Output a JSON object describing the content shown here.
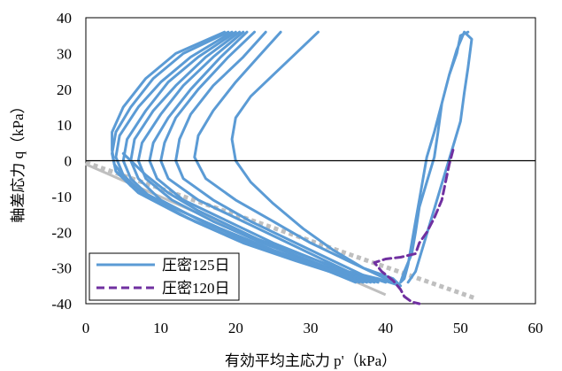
{
  "chart_data": {
    "type": "line",
    "title": "",
    "xlabel": "有効平均主応力 p'（kPa）",
    "ylabel": "軸差応力 q（kPa）",
    "xlim": [
      0,
      60
    ],
    "ylim": [
      -40,
      40
    ],
    "xticks": [
      "0",
      "10",
      "20",
      "30",
      "40",
      "50",
      "60"
    ],
    "yticks": [
      "40",
      "30",
      "20",
      "10",
      "0",
      "-10",
      "-20",
      "-30",
      "-40"
    ],
    "grid": false,
    "legend": "bottom-left",
    "colors": {
      "series_125": "#5b9bd5",
      "series_120": "#7030a0",
      "reference_line_solid": "#bfbfbf",
      "reference_line_dotted": "#bfbfbf",
      "zero_line": "#000000"
    },
    "series": [
      {
        "name": "圧密125日",
        "style": "solid",
        "segments": [
          [
            [
              51.0,
              36.0
            ],
            [
              50.0,
              35.0
            ],
            [
              49.5,
              30.0
            ],
            [
              48.5,
              24.0
            ],
            [
              47.5,
              16.0
            ],
            [
              46.5,
              8.0
            ],
            [
              45.5,
              1.0
            ],
            [
              45.0,
              -5.0
            ],
            [
              44.5,
              -11.0
            ],
            [
              44.0,
              -17.0
            ],
            [
              43.5,
              -23.0
            ],
            [
              43.0,
              -29.0
            ],
            [
              42.5,
              -33.0
            ],
            [
              42.0,
              -34.0
            ],
            [
              42.5,
              -31.0
            ],
            [
              43.5,
              -26.0
            ],
            [
              44.0,
              -20.0
            ],
            [
              44.5,
              -13.0
            ],
            [
              45.5,
              -6.0
            ],
            [
              46.5,
              1.0
            ],
            [
              47.0,
              8.0
            ],
            [
              47.5,
              16.0
            ],
            [
              48.5,
              24.0
            ],
            [
              49.5,
              31.0
            ],
            [
              50.5,
              36.0
            ],
            [
              51.5,
              34.0
            ],
            [
              51.0,
              26.0
            ],
            [
              50.5,
              19.0
            ],
            [
              50.0,
              11.0
            ],
            [
              49.0,
              4.0
            ],
            [
              48.0,
              -3.0
            ],
            [
              47.0,
              -10.0
            ],
            [
              46.0,
              -17.0
            ],
            [
              45.0,
              -24.0
            ],
            [
              44.0,
              -31.0
            ],
            [
              43.0,
              -34.0
            ]
          ],
          [
            [
              31.0,
              36.0
            ],
            [
              28.0,
              30.0
            ],
            [
              25.0,
              24.0
            ],
            [
              22.0,
              18.0
            ],
            [
              20.0,
              12.0
            ],
            [
              19.5,
              6.0
            ],
            [
              20.0,
              0.0
            ],
            [
              22.0,
              -6.0
            ],
            [
              25.0,
              -12.0
            ],
            [
              29.0,
              -19.0
            ],
            [
              33.0,
              -25.0
            ],
            [
              37.0,
              -30.0
            ],
            [
              41.0,
              -33.0
            ],
            [
              42.0,
              -35.0
            ],
            [
              39.0,
              -33.0
            ],
            [
              35.0,
              -31.0
            ],
            [
              31.0,
              -28.0
            ],
            [
              27.0,
              -25.0
            ],
            [
              23.0,
              -22.0
            ],
            [
              19.0,
              -18.0
            ],
            [
              15.0,
              -14.0
            ],
            [
              11.0,
              -9.0
            ],
            [
              8.0,
              -4.0
            ],
            [
              6.0,
              0.0
            ],
            [
              5.0,
              2.0
            ]
          ],
          [
            [
              26.0,
              36.0
            ],
            [
              23.0,
              29.0
            ],
            [
              20.0,
              22.0
            ],
            [
              17.0,
              14.0
            ],
            [
              15.0,
              7.0
            ],
            [
              14.5,
              1.0
            ],
            [
              16.0,
              -5.0
            ],
            [
              20.0,
              -11.0
            ],
            [
              25.0,
              -17.0
            ],
            [
              30.0,
              -23.0
            ],
            [
              35.0,
              -28.0
            ],
            [
              39.0,
              -32.0
            ],
            [
              41.0,
              -34.0
            ]
          ],
          [
            [
              24.0,
              36.0
            ],
            [
              21.0,
              29.0
            ],
            [
              17.0,
              21.0
            ],
            [
              14.0,
              13.0
            ],
            [
              12.5,
              6.0
            ],
            [
              12.0,
              0.0
            ],
            [
              13.0,
              -5.0
            ],
            [
              17.0,
              -11.0
            ],
            [
              22.0,
              -17.0
            ],
            [
              28.0,
              -23.0
            ],
            [
              33.0,
              -28.0
            ],
            [
              37.0,
              -32.0
            ],
            [
              40.0,
              -34.0
            ]
          ],
          [
            [
              22.5,
              36.0
            ],
            [
              19.0,
              29.0
            ],
            [
              15.0,
              20.0
            ],
            [
              12.0,
              12.0
            ],
            [
              10.5,
              5.0
            ],
            [
              10.0,
              0.0
            ],
            [
              11.0,
              -5.0
            ],
            [
              15.0,
              -11.0
            ],
            [
              21.0,
              -17.0
            ],
            [
              27.0,
              -23.0
            ],
            [
              32.0,
              -28.0
            ],
            [
              36.0,
              -32.0
            ],
            [
              39.0,
              -34.0
            ]
          ],
          [
            [
              21.5,
              36.0
            ],
            [
              18.0,
              29.0
            ],
            [
              14.0,
              20.0
            ],
            [
              11.0,
              12.0
            ],
            [
              9.0,
              5.0
            ],
            [
              8.5,
              0.0
            ],
            [
              9.5,
              -5.0
            ],
            [
              13.0,
              -11.0
            ],
            [
              19.0,
              -17.0
            ],
            [
              25.0,
              -23.0
            ],
            [
              31.0,
              -28.0
            ],
            [
              35.5,
              -32.0
            ],
            [
              38.5,
              -34.0
            ]
          ],
          [
            [
              21.0,
              36.0
            ],
            [
              17.0,
              29.0
            ],
            [
              13.0,
              21.0
            ],
            [
              10.0,
              13.0
            ],
            [
              7.5,
              5.0
            ],
            [
              7.0,
              0.0
            ],
            [
              8.0,
              -5.0
            ],
            [
              11.5,
              -11.0
            ],
            [
              17.0,
              -17.0
            ],
            [
              23.5,
              -23.0
            ],
            [
              30.0,
              -28.0
            ],
            [
              35.0,
              -32.0
            ],
            [
              38.0,
              -34.0
            ]
          ],
          [
            [
              20.5,
              36.0
            ],
            [
              16.0,
              29.0
            ],
            [
              12.0,
              21.0
            ],
            [
              9.0,
              14.0
            ],
            [
              6.5,
              6.0
            ],
            [
              6.0,
              0.0
            ],
            [
              7.0,
              -5.0
            ],
            [
              10.0,
              -11.0
            ],
            [
              15.5,
              -17.0
            ],
            [
              22.0,
              -23.0
            ],
            [
              29.0,
              -28.0
            ],
            [
              34.5,
              -32.0
            ],
            [
              37.5,
              -34.0
            ]
          ],
          [
            [
              20.0,
              36.0
            ],
            [
              15.0,
              29.0
            ],
            [
              11.0,
              22.0
            ],
            [
              8.0,
              14.0
            ],
            [
              5.5,
              6.0
            ],
            [
              5.0,
              0.0
            ],
            [
              6.0,
              -5.0
            ],
            [
              9.0,
              -11.0
            ],
            [
              14.5,
              -17.0
            ],
            [
              21.0,
              -23.0
            ],
            [
              28.0,
              -28.0
            ],
            [
              34.0,
              -32.0
            ],
            [
              37.0,
              -34.0
            ]
          ],
          [
            [
              19.5,
              36.0
            ],
            [
              14.0,
              29.0
            ],
            [
              10.0,
              22.0
            ],
            [
              7.0,
              15.0
            ],
            [
              4.5,
              7.0
            ],
            [
              4.0,
              1.0
            ],
            [
              5.0,
              -4.0
            ],
            [
              8.0,
              -10.0
            ],
            [
              13.5,
              -16.0
            ],
            [
              20.0,
              -22.0
            ],
            [
              27.0,
              -27.0
            ],
            [
              33.0,
              -31.0
            ],
            [
              36.5,
              -34.0
            ]
          ],
          [
            [
              19.0,
              36.0
            ],
            [
              13.0,
              30.0
            ],
            [
              9.0,
              23.0
            ],
            [
              6.0,
              15.0
            ],
            [
              4.0,
              8.0
            ],
            [
              3.5,
              2.0
            ],
            [
              4.0,
              -3.0
            ],
            [
              7.0,
              -9.0
            ],
            [
              12.5,
              -15.0
            ],
            [
              19.0,
              -21.0
            ],
            [
              26.0,
              -26.0
            ],
            [
              32.5,
              -31.0
            ],
            [
              36.0,
              -34.0
            ]
          ],
          [
            [
              18.5,
              36.0
            ],
            [
              12.0,
              30.0
            ],
            [
              8.0,
              23.0
            ],
            [
              5.0,
              15.0
            ],
            [
              3.5,
              8.0
            ],
            [
              3.5,
              3.0
            ],
            [
              3.8,
              -1.0
            ],
            [
              6.0,
              -7.0
            ],
            [
              11.5,
              -13.0
            ],
            [
              18.0,
              -19.0
            ],
            [
              25.0,
              -25.0
            ],
            [
              32.0,
              -30.0
            ],
            [
              35.5,
              -33.0
            ]
          ]
        ]
      },
      {
        "name": "圧密120日",
        "style": "dashed",
        "segments": [
          [
            [
              49.0,
              3.0
            ],
            [
              48.5,
              -1.0
            ],
            [
              48.0,
              -6.0
            ],
            [
              47.5,
              -11.0
            ],
            [
              46.5,
              -16.0
            ],
            [
              45.5,
              -20.0
            ],
            [
              44.5,
              -23.0
            ],
            [
              44.0,
              -26.0
            ],
            [
              42.0,
              -27.0
            ],
            [
              40.0,
              -27.5
            ],
            [
              38.5,
              -28.5
            ],
            [
              39.5,
              -31.0
            ],
            [
              41.0,
              -33.5
            ],
            [
              42.0,
              -36.0
            ],
            [
              42.5,
              -38.0
            ],
            [
              43.5,
              -39.5
            ],
            [
              44.5,
              -40.0
            ]
          ]
        ]
      }
    ],
    "reference_lines": [
      {
        "style": "solid",
        "points": [
          [
            0.0,
            -1.0
          ],
          [
            40.0,
            -37.5
          ]
        ]
      },
      {
        "style": "dotted",
        "points": [
          [
            0.0,
            -0.5
          ],
          [
            52.0,
            -38.5
          ]
        ]
      }
    ]
  }
}
